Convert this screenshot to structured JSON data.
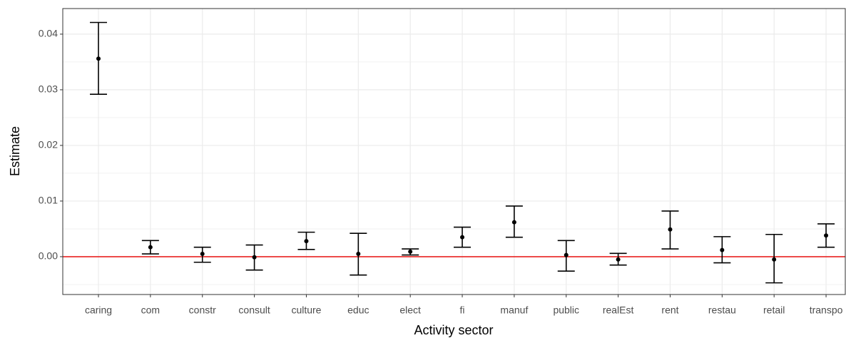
{
  "chart_data": {
    "type": "errorbar",
    "x_label": "Activity sector",
    "y_label": "Estimate",
    "categories": [
      "caring",
      "com",
      "constr",
      "consult",
      "culture",
      "educ",
      "elect",
      "fi",
      "manuf",
      "public",
      "realEst",
      "rent",
      "restau",
      "retail",
      "transpo"
    ],
    "series": [
      {
        "color": "#000000",
        "values": [
          0.0356,
          0.0017,
          0.0005,
          -0.0001,
          0.0028,
          0.0005,
          0.0009,
          0.0035,
          0.0062,
          0.0003,
          -0.0005,
          0.0049,
          0.0012,
          -0.0005,
          0.0038
        ],
        "lower": [
          0.0292,
          0.0005,
          -0.001,
          -0.0024,
          0.0013,
          -0.0033,
          0.0003,
          0.0017,
          0.0035,
          -0.0026,
          -0.0015,
          0.0014,
          -0.0011,
          -0.0047,
          0.0017
        ],
        "upper": [
          0.0421,
          0.0029,
          0.0017,
          0.0021,
          0.0044,
          0.0042,
          0.0014,
          0.0053,
          0.0091,
          0.0029,
          0.0006,
          0.0082,
          0.0036,
          0.004,
          0.0059
        ]
      }
    ],
    "ylim": [
      -0.0068,
      0.0446
    ],
    "yticks": [
      {
        "value": 0,
        "label": "0.00"
      },
      {
        "value": 0.01,
        "label": "0.01"
      },
      {
        "value": 0.02,
        "label": "0.02"
      },
      {
        "value": 0.03,
        "label": "0.03"
      },
      {
        "value": 0.04,
        "label": "0.04"
      }
    ],
    "minor_yticks": [
      -0.005,
      0.005,
      0.015,
      0.025,
      0.035
    ],
    "hline": 0,
    "hline_color": "#e8110f",
    "grid": true
  }
}
